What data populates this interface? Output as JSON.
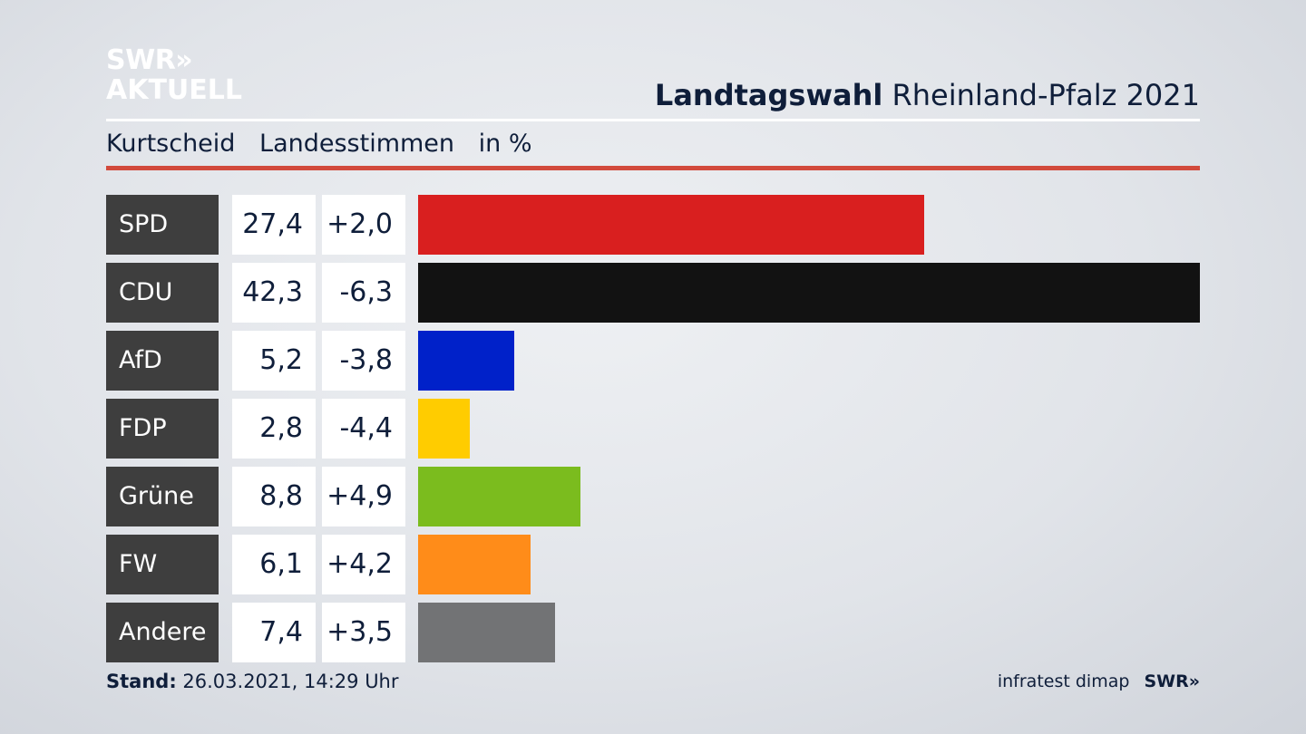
{
  "logo": {
    "line1": "SWR»",
    "line2": "AKTUELL"
  },
  "header": {
    "title_bold": "Landtagswahl",
    "title_rest": "Rheinland-Pfalz 2021"
  },
  "subheader": {
    "location": "Kurtscheid",
    "vote_type": "Landesstimmen",
    "unit": "in %"
  },
  "footer": {
    "stand_label": "Stand:",
    "stand_value": "26.03.2021, 14:29 Uhr",
    "source": "infratest dimap",
    "brand": "SWR»"
  },
  "chart_data": {
    "type": "bar",
    "orientation": "horizontal",
    "categories": [
      "SPD",
      "CDU",
      "AfD",
      "FDP",
      "Grüne",
      "FW",
      "Andere"
    ],
    "values": [
      27.4,
      42.3,
      5.2,
      2.8,
      8.8,
      6.1,
      7.4
    ],
    "values_label": [
      "27,4",
      "42,3",
      "5,2",
      "2,8",
      "8,8",
      "6,1",
      "7,4"
    ],
    "changes_label": [
      "+2,0",
      "-6,3",
      "-3,8",
      "-4,4",
      "+4,9",
      "+4,2",
      "+3,5"
    ],
    "colors": [
      "#d91f1f",
      "#121212",
      "#0021c9",
      "#ffcc00",
      "#7bbc1e",
      "#ff8c19",
      "#727375"
    ],
    "xlim": [
      0,
      42.3
    ]
  }
}
